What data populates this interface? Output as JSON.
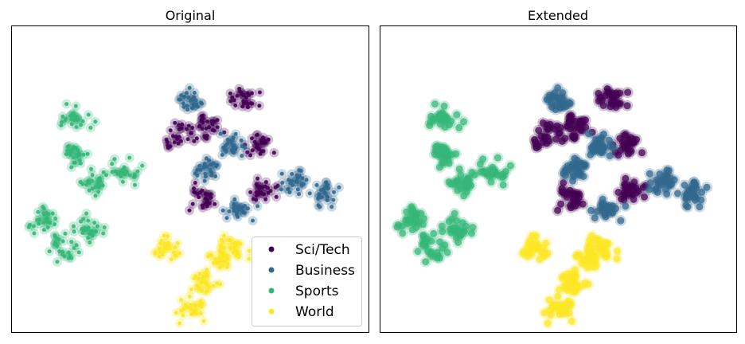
{
  "chart_data": [
    {
      "type": "scatter",
      "title": "Original",
      "xlabel": "",
      "ylabel": "",
      "xlim": [
        0,
        100
      ],
      "ylim": [
        0,
        100
      ],
      "axes_ticks": false,
      "legend": {
        "placement": "lower right",
        "entries": [
          "Sci/Tech",
          "Business",
          "Sports",
          "World"
        ]
      },
      "series": [
        {
          "name": "Sci/Tech",
          "color": "#440154",
          "clusters": [
            [
              65,
              76
            ],
            [
              55,
              67
            ],
            [
              70,
              62
            ],
            [
              54,
              44
            ],
            [
              70,
              46
            ],
            [
              47,
              64
            ]
          ]
        },
        {
          "name": "Business",
          "color": "#31688e",
          "clusters": [
            [
              62,
              61
            ],
            [
              55,
              53
            ],
            [
              80,
              50
            ],
            [
              88,
              45
            ],
            [
              64,
              40
            ],
            [
              50,
              76
            ]
          ]
        },
        {
          "name": "Sports",
          "color": "#35b779",
          "clusters": [
            [
              18,
              70
            ],
            [
              17,
              58
            ],
            [
              23,
              48
            ],
            [
              9,
              36
            ],
            [
              22,
              34
            ],
            [
              14,
              28
            ],
            [
              32,
              52
            ]
          ]
        },
        {
          "name": "World",
          "color": "#fde725",
          "clusters": [
            [
              58,
              24
            ],
            [
              54,
              16
            ],
            [
              50,
              8
            ],
            [
              62,
              28
            ],
            [
              44,
              28
            ]
          ]
        }
      ]
    },
    {
      "type": "scatter",
      "title": "Extended",
      "xlabel": "",
      "ylabel": "",
      "xlim": [
        0,
        100
      ],
      "ylim": [
        0,
        100
      ],
      "axes_ticks": false,
      "series": [
        {
          "name": "Sci/Tech",
          "color": "#440154",
          "clusters": [
            [
              65,
              76
            ],
            [
              55,
              67
            ],
            [
              70,
              62
            ],
            [
              54,
              44
            ],
            [
              70,
              46
            ],
            [
              47,
              64
            ]
          ]
        },
        {
          "name": "Business",
          "color": "#31688e",
          "clusters": [
            [
              62,
              61
            ],
            [
              55,
              53
            ],
            [
              80,
              50
            ],
            [
              88,
              45
            ],
            [
              64,
              40
            ],
            [
              50,
              76
            ]
          ]
        },
        {
          "name": "Sports",
          "color": "#35b779",
          "clusters": [
            [
              18,
              70
            ],
            [
              17,
              58
            ],
            [
              23,
              48
            ],
            [
              9,
              36
            ],
            [
              22,
              34
            ],
            [
              14,
              28
            ],
            [
              32,
              52
            ]
          ]
        },
        {
          "name": "World",
          "color": "#fde725",
          "clusters": [
            [
              58,
              24
            ],
            [
              54,
              16
            ],
            [
              50,
              8
            ],
            [
              62,
              28
            ],
            [
              44,
              28
            ]
          ]
        }
      ]
    }
  ]
}
